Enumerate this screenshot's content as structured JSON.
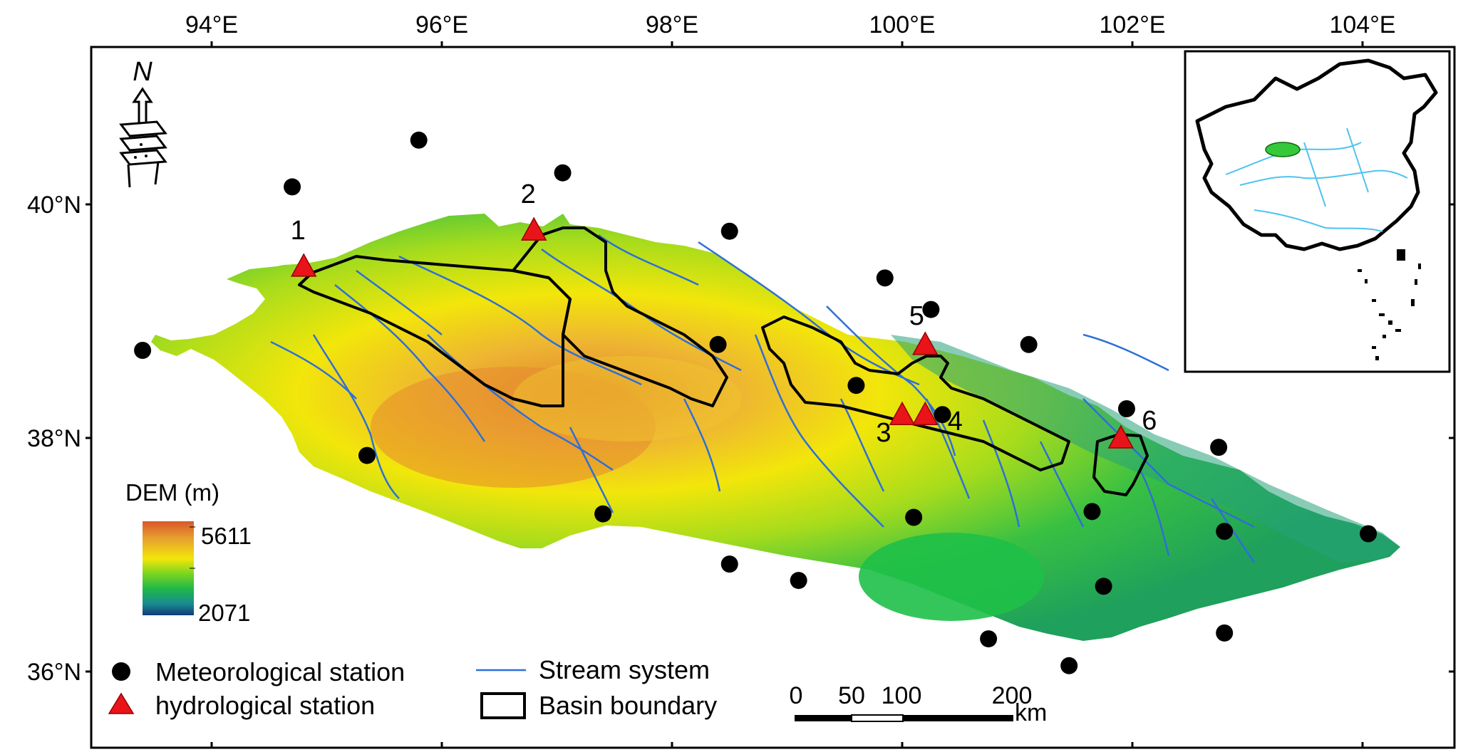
{
  "longitude_ticks": [
    {
      "label": "94°E",
      "lon": 94
    },
    {
      "label": "96°E",
      "lon": 96
    },
    {
      "label": "98°E",
      "lon": 98
    },
    {
      "label": "100°E",
      "lon": 100
    },
    {
      "label": "102°E",
      "lon": 102
    },
    {
      "label": "104°E",
      "lon": 104
    }
  ],
  "latitude_ticks": [
    {
      "label": "40°N",
      "lat": 40
    },
    {
      "label": "38°N",
      "lat": 38
    },
    {
      "label": "36°N",
      "lat": 36
    }
  ],
  "north_arrow": {
    "label": "N",
    "icon": "north-arrow-icon"
  },
  "dem_legend": {
    "title": "DEM (m)",
    "max_label": "5611",
    "min_label": "2071",
    "colors": [
      "#d9572a",
      "#e6a030",
      "#f2e60a",
      "#7fd61e",
      "#1fb84a",
      "#1a8a90",
      "#123a7a"
    ]
  },
  "meteorological_stations": [
    {
      "lon": 93.4,
      "lat": 38.75
    },
    {
      "lon": 94.7,
      "lat": 40.15
    },
    {
      "lon": 95.8,
      "lat": 40.55
    },
    {
      "lon": 97.05,
      "lat": 40.27
    },
    {
      "lon": 98.5,
      "lat": 39.77
    },
    {
      "lon": 99.85,
      "lat": 39.37
    },
    {
      "lon": 100.25,
      "lat": 39.1
    },
    {
      "lon": 98.4,
      "lat": 38.8
    },
    {
      "lon": 101.1,
      "lat": 38.8
    },
    {
      "lon": 99.6,
      "lat": 38.45
    },
    {
      "lon": 100.35,
      "lat": 38.2
    },
    {
      "lon": 101.95,
      "lat": 38.25
    },
    {
      "lon": 102.75,
      "lat": 37.92
    },
    {
      "lon": 95.35,
      "lat": 37.85
    },
    {
      "lon": 97.4,
      "lat": 37.35
    },
    {
      "lon": 100.1,
      "lat": 37.32
    },
    {
      "lon": 101.65,
      "lat": 37.37
    },
    {
      "lon": 102.8,
      "lat": 37.2
    },
    {
      "lon": 98.5,
      "lat": 36.92
    },
    {
      "lon": 99.1,
      "lat": 36.78
    },
    {
      "lon": 101.75,
      "lat": 36.73
    },
    {
      "lon": 104.05,
      "lat": 37.18
    },
    {
      "lon": 100.75,
      "lat": 36.28
    },
    {
      "lon": 102.8,
      "lat": 36.33
    },
    {
      "lon": 101.45,
      "lat": 36.05
    }
  ],
  "hydrological_stations": [
    {
      "id": "1",
      "lon": 94.8,
      "lat": 39.47
    },
    {
      "id": "2",
      "lon": 96.8,
      "lat": 39.78
    },
    {
      "id": "3",
      "lon": 100.0,
      "lat": 38.2
    },
    {
      "id": "4",
      "lon": 100.2,
      "lat": 38.2
    },
    {
      "id": "5",
      "lon": 100.2,
      "lat": 38.8
    },
    {
      "id": "6",
      "lon": 101.9,
      "lat": 38.0
    }
  ],
  "legend": {
    "meteorological_label": "Meteorological station",
    "hydrological_label": "hydrological station",
    "stream_label": "Stream system",
    "basin_label": "Basin boundary"
  },
  "scale_bar": {
    "ticks": [
      "0",
      "50",
      "100",
      "200"
    ],
    "unit": "km"
  },
  "colors": {
    "stream": "#2e6fd8",
    "station_marker": "#e8141a",
    "basin": "#000000",
    "inset_highlight": "#35c83a",
    "inset_rivers": "#4fc3ef"
  }
}
